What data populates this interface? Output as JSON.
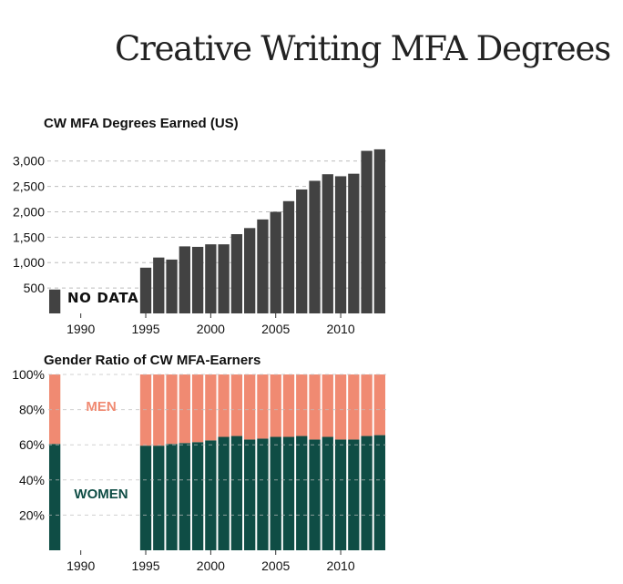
{
  "page": {
    "title": "Creative Writing MFA Degrees"
  },
  "colors": {
    "bar": "#424242",
    "men": "#f08a72",
    "women": "#0f4d45",
    "grid": "#bdbdbd"
  },
  "chart_data": [
    {
      "type": "bar",
      "title": "CW MFA Degrees Earned (US)",
      "xlabel": "",
      "ylabel": "",
      "x": [
        1988,
        1995,
        1996,
        1997,
        1998,
        1999,
        2000,
        2001,
        2002,
        2003,
        2004,
        2005,
        2006,
        2007,
        2008,
        2009,
        2010,
        2011,
        2012,
        2013
      ],
      "values": [
        470,
        900,
        1100,
        1060,
        1320,
        1310,
        1360,
        1360,
        1560,
        1680,
        1850,
        2000,
        2210,
        2440,
        2610,
        2740,
        2700,
        2750,
        3200,
        3230
      ],
      "xlim": [
        1987.5,
        2013.5
      ],
      "ylim": [
        0,
        3300
      ],
      "yticks": [
        500,
        1000,
        1500,
        2000,
        2500,
        3000
      ],
      "ytick_labels": [
        "500",
        "1,000",
        "1,500",
        "2,000",
        "2,500",
        "3,000"
      ],
      "xticks": [
        1990,
        1995,
        2000,
        2005,
        2010
      ],
      "xtick_labels": [
        "1990",
        "1995",
        "2000",
        "2005",
        "2010"
      ],
      "annotations": [
        "NO DATA"
      ],
      "grid": "dashed horizontal"
    },
    {
      "type": "bar",
      "stacked": true,
      "percent": true,
      "title": "Gender Ratio of CW MFA-Earners",
      "xlabel": "",
      "ylabel": "",
      "x": [
        1988,
        1995,
        1996,
        1997,
        1998,
        1999,
        2000,
        2001,
        2002,
        2003,
        2004,
        2005,
        2006,
        2007,
        2008,
        2009,
        2010,
        2011,
        2012,
        2013
      ],
      "series": [
        {
          "name": "WOMEN",
          "values": [
            60.5,
            59.5,
            59.5,
            60.5,
            61,
            61.5,
            62.5,
            64.5,
            65,
            63,
            63.5,
            64.5,
            64.5,
            65,
            63,
            64.5,
            63,
            63,
            65,
            65.5
          ]
        },
        {
          "name": "MEN",
          "values": [
            39.5,
            40.5,
            40.5,
            39.5,
            39,
            38.5,
            37.5,
            35.5,
            35,
            37,
            36.5,
            35.5,
            35.5,
            35,
            37,
            35.5,
            37,
            37,
            35,
            34.5
          ]
        }
      ],
      "xlim": [
        1987.5,
        2013.5
      ],
      "ylim": [
        0,
        100
      ],
      "yticks": [
        20,
        40,
        60,
        80,
        100
      ],
      "ytick_labels": [
        "20%",
        "40%",
        "60%",
        "80%",
        "100%"
      ],
      "xticks": [
        1990,
        1995,
        2000,
        2005,
        2010
      ],
      "xtick_labels": [
        "1990",
        "1995",
        "2000",
        "2005",
        "2010"
      ],
      "grid": "dashed horizontal"
    }
  ]
}
